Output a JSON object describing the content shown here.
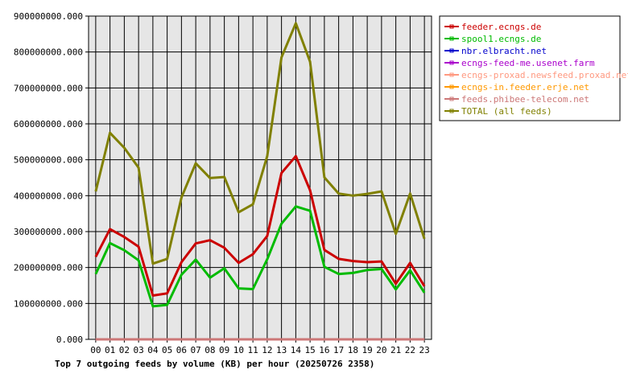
{
  "chart_data": {
    "type": "line",
    "title": "Top 7 outgoing feeds by volume (KB) per hour (20250726 2358)",
    "x": [
      "00",
      "01",
      "02",
      "03",
      "04",
      "05",
      "06",
      "07",
      "08",
      "09",
      "10",
      "11",
      "12",
      "13",
      "14",
      "15",
      "16",
      "17",
      "18",
      "19",
      "20",
      "21",
      "22",
      "23"
    ],
    "ylim": [
      0,
      900000000
    ],
    "yticks": [
      "0.000",
      "100000000.000",
      "200000000.000",
      "300000000.000",
      "400000000.000",
      "500000000.000",
      "600000000.000",
      "700000000.000",
      "800000000.000",
      "900000000.000"
    ],
    "grid": true,
    "legend_position": "right",
    "series": [
      {
        "name": "feeder.ecngs.de",
        "color": "#cc0000",
        "values": [
          230000000,
          307000000,
          285000000,
          258000000,
          122000000,
          128000000,
          215000000,
          267000000,
          276000000,
          255000000,
          213000000,
          237000000,
          288000000,
          463000000,
          510000000,
          415000000,
          249000000,
          224000000,
          218000000,
          215000000,
          217000000,
          155000000,
          213000000,
          148000000
        ]
      },
      {
        "name": "spool1.ecngs.de",
        "color": "#00bb00",
        "values": [
          182000000,
          268000000,
          248000000,
          220000000,
          92000000,
          96000000,
          180000000,
          222000000,
          172000000,
          198000000,
          142000000,
          140000000,
          223000000,
          322000000,
          370000000,
          358000000,
          202000000,
          182000000,
          185000000,
          193000000,
          196000000,
          139000000,
          192000000,
          130000000
        ]
      },
      {
        "name": "nbr.elbracht.net",
        "color": "#0000cc",
        "values": [
          0,
          0,
          0,
          0,
          0,
          0,
          0,
          0,
          0,
          0,
          0,
          0,
          0,
          0,
          0,
          0,
          0,
          0,
          0,
          0,
          0,
          0,
          0,
          0
        ]
      },
      {
        "name": "ecngs-feed-me.usenet.farm",
        "color": "#aa00cc",
        "values": [
          0,
          0,
          0,
          0,
          0,
          0,
          0,
          0,
          0,
          0,
          0,
          0,
          0,
          0,
          0,
          0,
          0,
          0,
          0,
          0,
          0,
          0,
          0,
          0
        ]
      },
      {
        "name": "ecngs-proxad.newsfeed.proxad.net",
        "color": "#ff9980",
        "values": [
          0,
          0,
          0,
          0,
          0,
          0,
          0,
          0,
          0,
          0,
          0,
          0,
          0,
          0,
          0,
          0,
          0,
          0,
          0,
          0,
          0,
          0,
          0,
          0
        ]
      },
      {
        "name": "ecngs-in.feeder.erje.net",
        "color": "#ff9900",
        "values": [
          0,
          0,
          0,
          0,
          0,
          0,
          0,
          0,
          0,
          0,
          0,
          0,
          0,
          0,
          0,
          0,
          0,
          0,
          0,
          0,
          0,
          0,
          0,
          0
        ]
      },
      {
        "name": "feeds.phibee-telecom.net",
        "color": "#cc7777",
        "values": [
          0,
          0,
          0,
          0,
          0,
          0,
          0,
          0,
          0,
          0,
          0,
          0,
          0,
          0,
          0,
          0,
          0,
          0,
          0,
          0,
          0,
          0,
          0,
          0
        ]
      },
      {
        "name": "TOTAL (all feeds)",
        "color": "#808000",
        "values": [
          412000000,
          575000000,
          533000000,
          478000000,
          211000000,
          224000000,
          395000000,
          490000000,
          449000000,
          452000000,
          354000000,
          376000000,
          510000000,
          785000000,
          880000000,
          773000000,
          451000000,
          406000000,
          400000000,
          405000000,
          412000000,
          294000000,
          406000000,
          280000000
        ]
      }
    ]
  }
}
